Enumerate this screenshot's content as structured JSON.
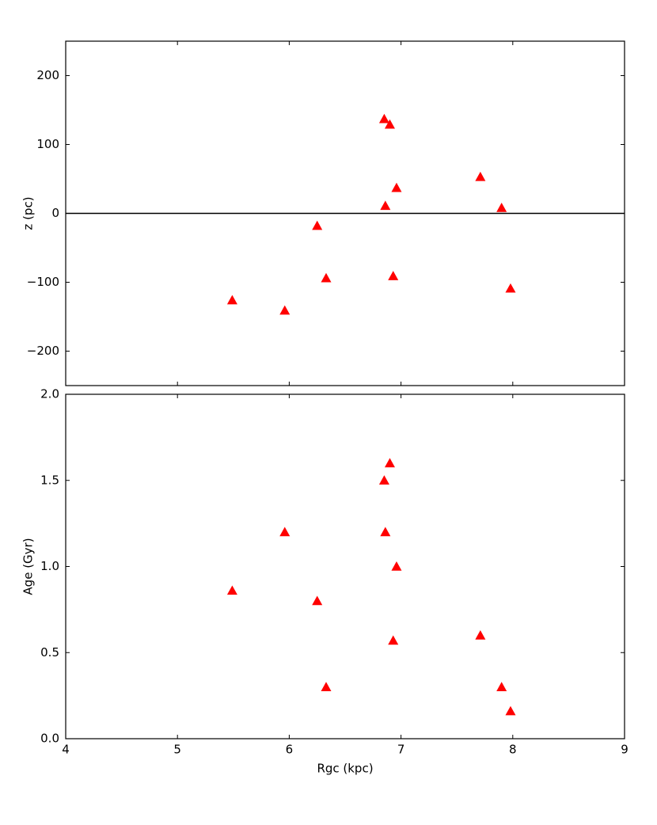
{
  "chart_data": [
    {
      "type": "scatter",
      "ylabel": "z (pc)",
      "x": [
        5.49,
        5.96,
        6.25,
        6.33,
        6.85,
        6.86,
        6.9,
        6.93,
        6.96,
        7.71,
        7.9,
        7.98
      ],
      "values": [
        -126,
        -141,
        -18,
        -94,
        137,
        11,
        129,
        -91,
        37,
        53,
        8,
        -109
      ],
      "color": "#ff0000",
      "marker": "triangle",
      "xlim": [
        4,
        9
      ],
      "xticks": [
        4,
        5,
        6,
        7,
        8,
        9
      ],
      "ylim": [
        -250,
        250
      ],
      "yticks": [
        {
          "value": -200,
          "label": "−200"
        },
        {
          "value": -100,
          "label": "−100"
        },
        0,
        100,
        200
      ],
      "hline": 0
    },
    {
      "type": "scatter",
      "xlabel": "Rgc (kpc)",
      "ylabel": "Age (Gyr)",
      "x": [
        5.49,
        5.96,
        6.25,
        6.33,
        6.85,
        6.86,
        6.9,
        6.93,
        6.96,
        7.71,
        7.9,
        7.98
      ],
      "values": [
        0.86,
        1.2,
        0.8,
        0.3,
        1.5,
        1.2,
        1.6,
        0.57,
        1.0,
        0.6,
        0.3,
        0.16
      ],
      "color": "#ff0000",
      "marker": "triangle",
      "xlim": [
        4,
        9
      ],
      "xticks": [
        4,
        5,
        6,
        7,
        8,
        9
      ],
      "ylim": [
        0,
        2
      ],
      "yticks": [
        {
          "value": 0,
          "label": "0.0"
        },
        0.5,
        {
          "value": 1,
          "label": "1.0"
        },
        1.5,
        {
          "value": 2,
          "label": "2.0"
        }
      ]
    }
  ]
}
